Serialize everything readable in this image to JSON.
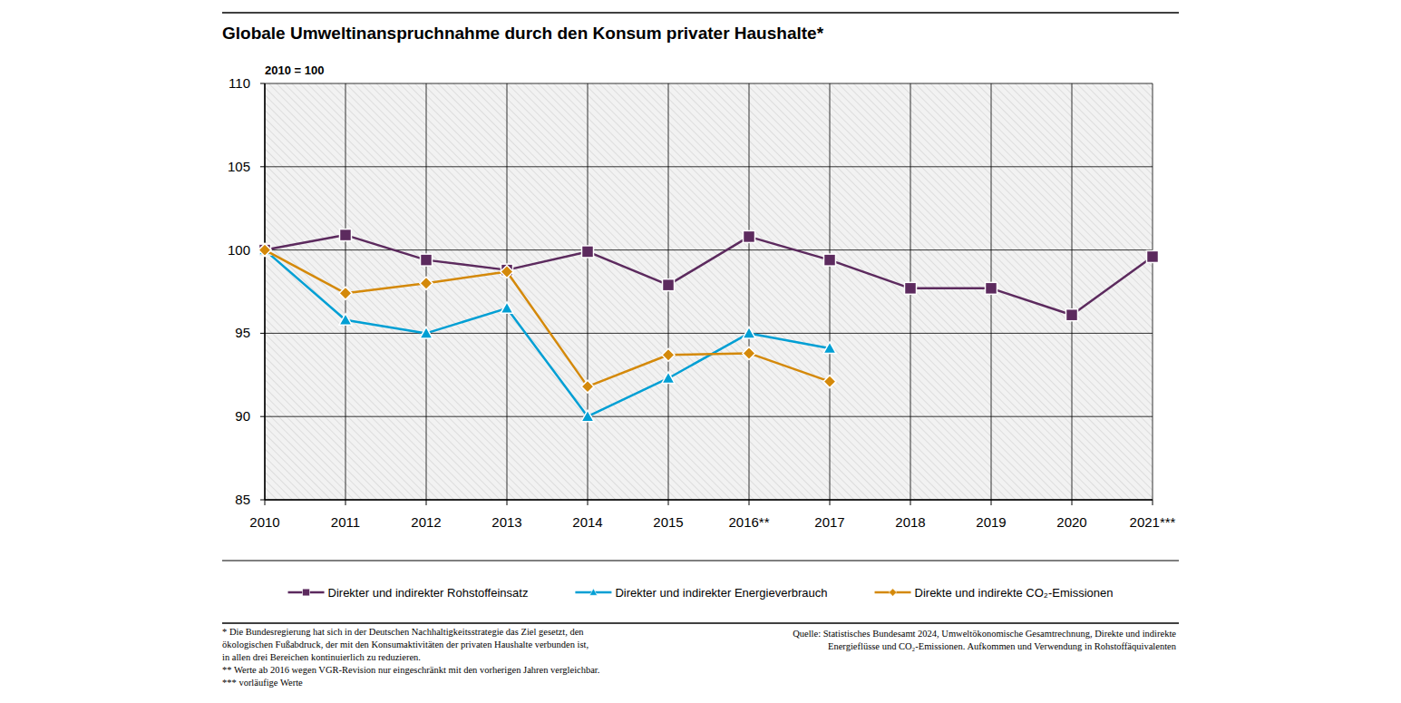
{
  "chart_data": {
    "type": "line",
    "title": "Globale Umweltinanspruchnahme durch den Konsum privater Haushalte*",
    "subtitle": "2010 = 100",
    "categories": [
      "2010",
      "2011",
      "2012",
      "2013",
      "2014",
      "2015",
      "2016**",
      "2017",
      "2018",
      "2019",
      "2020",
      "2021***"
    ],
    "series": [
      {
        "name": "Direkter und indirekter Rohstoffeinsatz",
        "color": "#5c2a5e",
        "marker": "square",
        "values": [
          100,
          100.9,
          99.4,
          98.8,
          99.9,
          97.9,
          100.8,
          99.4,
          97.7,
          97.7,
          96.1,
          99.6
        ]
      },
      {
        "name": "Direkter und indirekter Energieverbrauch",
        "color": "#009fd4",
        "marker": "triangle",
        "values": [
          100,
          95.8,
          95.0,
          96.5,
          90.0,
          92.3,
          95.0,
          94.1,
          null,
          null,
          null,
          null
        ]
      },
      {
        "name": "Direkte und indirekte CO₂-Emissionen",
        "color": "#d4890a",
        "marker": "diamond",
        "values": [
          100,
          97.4,
          98.0,
          98.7,
          91.8,
          93.7,
          93.8,
          92.1,
          null,
          null,
          null,
          null
        ]
      }
    ],
    "ylim": [
      85,
      110
    ],
    "yticks": [
      85,
      90,
      95,
      100,
      105,
      110
    ],
    "grid": true,
    "legend": "bottom",
    "notes": [
      "* Die Bundesregierung hat sich in der Deutschen Nachhaltigkeitsstrategie das Ziel gesetzt, den",
      "ökologischen Fußabdruck, der mit den Konsumaktivitäten der privaten Haushalte verbunden ist,",
      "in allen drei Bereichen kontinuierlich zu reduzieren.",
      "** Werte ab 2016 wegen VGR-Revision nur eingeschränkt mit den vorherigen Jahren vergleichbar.",
      "*** vorläufige Werte"
    ],
    "source": [
      "Quelle: Statistisches Bundesamt 2024, Umweltökonomische Gesamtrechnung, Direkte und indirekte",
      "Energieflüsse und CO₂-Emissionen. Aufkommen und Verwendung in Rohstoffäquivalenten"
    ]
  }
}
